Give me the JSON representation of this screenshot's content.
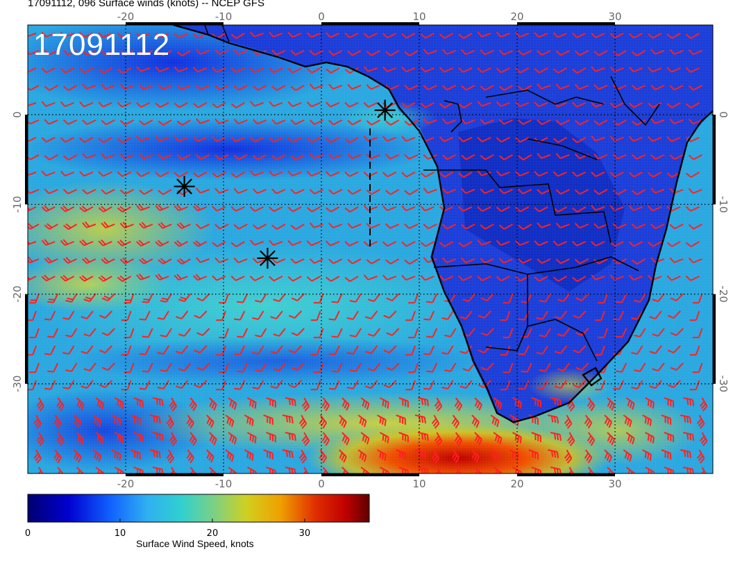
{
  "title": "17091112, 096 Surface winds (knots) -- NCEP GFS",
  "date_label": "17091112",
  "map": {
    "lon_ticks": [
      "-20",
      "-10",
      "0",
      "10",
      "20",
      "30"
    ],
    "lat_ticks": [
      "0",
      "-10",
      "-20",
      "-30"
    ],
    "lon_range": [
      -30,
      40
    ],
    "lat_range": [
      -40,
      10
    ],
    "barb_color": "#ff2020",
    "coast_color": "#000000",
    "markers": [
      {
        "name": "station-marker-1",
        "lon": 6.5,
        "lat": 0.5
      },
      {
        "name": "station-marker-2",
        "lon": -14,
        "lat": -8
      },
      {
        "name": "station-marker-3",
        "lon": -5.5,
        "lat": -16
      }
    ]
  },
  "colorbar": {
    "label": "Surface Wind Speed, knots",
    "ticks": [
      "0",
      "10",
      "20",
      "30"
    ],
    "range": [
      0,
      37
    ],
    "colors": [
      "#000070",
      "#0000d0",
      "#1060ff",
      "#30b0f0",
      "#30d0d0",
      "#80d080",
      "#d0d020",
      "#f0a000",
      "#e03000",
      "#c00000",
      "#600000"
    ]
  }
}
